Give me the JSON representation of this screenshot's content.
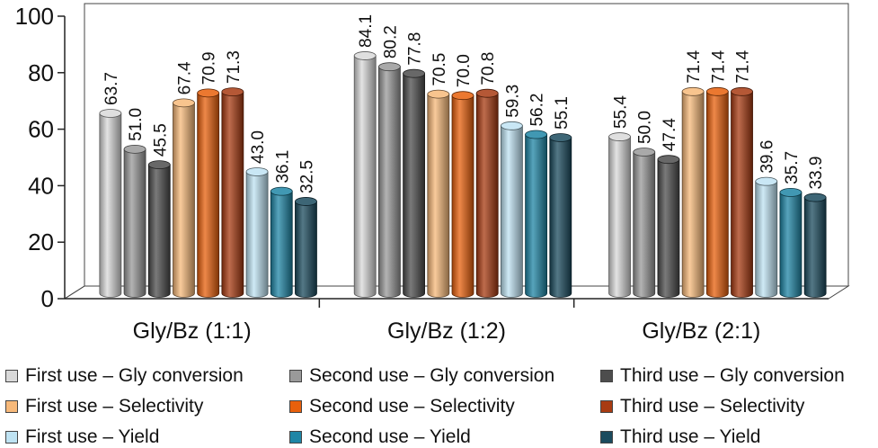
{
  "chart_data": {
    "type": "bar",
    "title": "",
    "xlabel": "",
    "ylabel": "",
    "ylim": [
      0,
      100
    ],
    "yticks": [
      0,
      20,
      40,
      60,
      80,
      100
    ],
    "categories": [
      "Gly/Bz (1:1)",
      "Gly/Bz (1:2)",
      "Gly/Bz (2:1)"
    ],
    "series": [
      {
        "name": "First use – Gly conversion",
        "color": "#d9d9d9",
        "values": [
          63.7,
          84.1,
          55.4
        ],
        "labels": [
          "63.7",
          "84.1",
          "55.4"
        ]
      },
      {
        "name": "Second use – Gly conversion",
        "color": "#9a9a9a",
        "values": [
          51.0,
          80.2,
          50.0
        ],
        "labels": [
          "51.0",
          "80.2",
          "50.0"
        ]
      },
      {
        "name": "Third use – Gly conversion",
        "color": "#4d4d4d",
        "values": [
          45.5,
          77.8,
          47.4
        ],
        "labels": [
          "45.5",
          "77.8",
          "47.4"
        ]
      },
      {
        "name": "First use – Selectivity",
        "color": "#f7b97a",
        "values": [
          67.4,
          70.5,
          71.4
        ],
        "labels": [
          "67.4",
          "70.5",
          "71.4"
        ]
      },
      {
        "name": "Second use – Selectivity",
        "color": "#e8600c",
        "values": [
          70.9,
          70.0,
          71.4
        ],
        "labels": [
          "70.9",
          "70.0",
          "71.4"
        ]
      },
      {
        "name": "Third use – Selectivity",
        "color": "#a83b12",
        "values": [
          71.3,
          70.8,
          71.4
        ],
        "labels": [
          "71.3",
          "70.8",
          "71.4"
        ]
      },
      {
        "name": "First use – Yield",
        "color": "#bfe3f3",
        "values": [
          43.0,
          59.3,
          39.6
        ],
        "labels": [
          "43.0",
          "59.3",
          "39.6"
        ]
      },
      {
        "name": "Second use – Yield",
        "color": "#1f86a6",
        "values": [
          36.1,
          56.2,
          35.7
        ],
        "labels": [
          "36.1",
          "56.2",
          "35.7"
        ]
      },
      {
        "name": "Third use – Yield",
        "color": "#1b4b5e",
        "values": [
          32.5,
          55.1,
          33.9
        ],
        "labels": [
          "32.5",
          "55.1",
          "33.9"
        ]
      }
    ],
    "legend_position": "bottom"
  }
}
